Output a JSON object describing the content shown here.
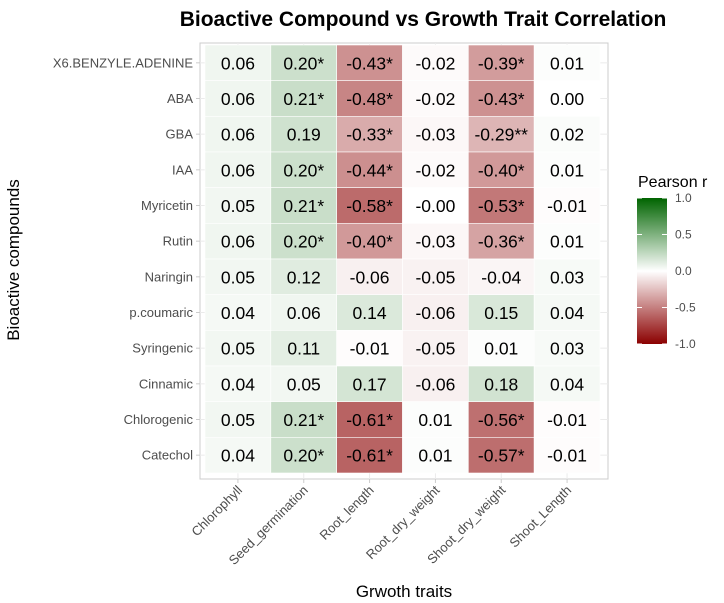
{
  "chart_data": {
    "type": "heatmap",
    "title": "Bioactive Compound vs Growth Trait Correlation",
    "xlabel": "Grwoth traits",
    "ylabel": "Bioactive compounds",
    "x_categories": [
      "Chlorophyll",
      "Seed_germination",
      "Root_length",
      "Root_dry_weight",
      "Shoot_dry_weight",
      "Shoot_Length"
    ],
    "y_categories": [
      "X6.BENZYLE.ADENINE",
      "ABA",
      "GBA",
      "IAA",
      "Myricetin",
      "Rutin",
      "Naringin",
      "p.coumaric",
      "Syringenic",
      "Cinnamic",
      "Chlorogenic",
      "Catechol"
    ],
    "values": [
      [
        0.06,
        0.2,
        -0.43,
        -0.02,
        -0.39,
        0.01
      ],
      [
        0.06,
        0.21,
        -0.48,
        -0.02,
        -0.43,
        0.0
      ],
      [
        0.06,
        0.19,
        -0.33,
        -0.03,
        -0.29,
        0.02
      ],
      [
        0.06,
        0.2,
        -0.44,
        -0.02,
        -0.4,
        0.01
      ],
      [
        0.05,
        0.21,
        -0.58,
        -0.0,
        -0.53,
        -0.01
      ],
      [
        0.06,
        0.2,
        -0.4,
        -0.03,
        -0.36,
        0.01
      ],
      [
        0.05,
        0.12,
        -0.06,
        -0.05,
        -0.04,
        0.03
      ],
      [
        0.04,
        0.06,
        0.14,
        -0.06,
        0.15,
        0.04
      ],
      [
        0.05,
        0.11,
        -0.01,
        -0.05,
        0.01,
        0.03
      ],
      [
        0.04,
        0.05,
        0.17,
        -0.06,
        0.18,
        0.04
      ],
      [
        0.05,
        0.21,
        -0.61,
        0.01,
        -0.56,
        -0.01
      ],
      [
        0.04,
        0.2,
        -0.61,
        0.01,
        -0.57,
        -0.01
      ]
    ],
    "labels": [
      [
        "0.06",
        "0.20*",
        "-0.43*",
        "-0.02",
        "-0.39*",
        "0.01"
      ],
      [
        "0.06",
        "0.21*",
        "-0.48*",
        "-0.02",
        "-0.43*",
        "0.00"
      ],
      [
        "0.06",
        "0.19",
        "-0.33*",
        "-0.03",
        "-0.29**",
        "0.02"
      ],
      [
        "0.06",
        "0.20*",
        "-0.44*",
        "-0.02",
        "-0.40*",
        "0.01"
      ],
      [
        "0.05",
        "0.21*",
        "-0.58*",
        "-0.00",
        "-0.53*",
        "-0.01"
      ],
      [
        "0.06",
        "0.20*",
        "-0.40*",
        "-0.03",
        "-0.36*",
        "0.01"
      ],
      [
        "0.05",
        "0.12",
        "-0.06",
        "-0.05",
        "-0.04",
        "0.03"
      ],
      [
        "0.04",
        "0.06",
        "0.14",
        "-0.06",
        "0.15",
        "0.04"
      ],
      [
        "0.05",
        "0.11",
        "-0.01",
        "-0.05",
        "0.01",
        "0.03"
      ],
      [
        "0.04",
        "0.05",
        "0.17",
        "-0.06",
        "0.18",
        "0.04"
      ],
      [
        "0.05",
        "0.21*",
        "-0.61*",
        "0.01",
        "-0.56*",
        "-0.01"
      ],
      [
        "0.04",
        "0.20*",
        "-0.61*",
        "0.01",
        "-0.57*",
        "-0.01"
      ]
    ],
    "color_scale": {
      "low": "#8B0000",
      "mid": "#FFFFFF",
      "high": "#006400",
      "range": [
        -1.0,
        1.0
      ]
    },
    "legend": {
      "title": "Pearson r",
      "ticks": [
        "1.0",
        "0.5",
        "0.0",
        "-0.5",
        "-1.0"
      ],
      "tick_values": [
        1.0,
        0.5,
        0.0,
        -0.5,
        -1.0
      ],
      "placement": "right"
    },
    "grid": true
  }
}
